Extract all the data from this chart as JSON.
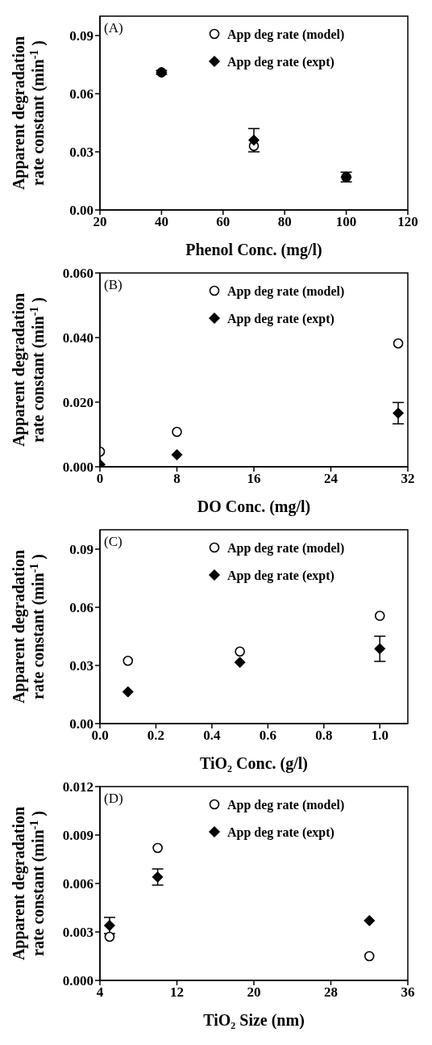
{
  "chart_data": [
    {
      "type": "scatter",
      "annotations": [
        "(A)"
      ],
      "xlabel": "Phenol Conc. (mg/l)",
      "ylabel": "Apparent degradation\nrate constant (min$^{-1}$)",
      "x": [
        40,
        70,
        100
      ],
      "xlim": [
        20,
        120
      ],
      "xticks": [
        20,
        40,
        60,
        80,
        100,
        120
      ],
      "ylim": [
        0,
        0.1
      ],
      "yticks": [
        {
          "value": 0,
          "label": "0.00"
        },
        {
          "value": 0.03,
          "label": "0.03"
        },
        {
          "value": 0.06,
          "label": "0.06"
        },
        {
          "value": 0.09,
          "label": "0.09"
        }
      ],
      "legend": "top right",
      "series": [
        {
          "name": "App deg rate (model)",
          "color": "#000000",
          "marker": "circle",
          "values": [
            0.071,
            0.033,
            0.017
          ]
        },
        {
          "name": "App deg rate (expt)",
          "color": "#000000",
          "marker": "diamond",
          "values": [
            0.071,
            0.036,
            0.017
          ],
          "errors": [
            0.001,
            0.006,
            0.0025
          ]
        }
      ]
    },
    {
      "type": "scatter",
      "annotations": [
        "(B)"
      ],
      "xlabel": "DO Conc. (mg/l)",
      "ylabel": "Apparent degradation\nrate constant (min$^{-1}$)",
      "x": [
        0,
        8,
        31
      ],
      "xlim": [
        0,
        32
      ],
      "xticks": [
        0,
        8,
        16,
        24,
        32
      ],
      "ylim": [
        0,
        0.06
      ],
      "yticks": [
        {
          "value": 0,
          "label": "0.000"
        },
        {
          "value": 0.02,
          "label": "0.020"
        },
        {
          "value": 0.04,
          "label": "0.040"
        },
        {
          "value": 0.06,
          "label": "0.060"
        }
      ],
      "legend": "top right",
      "series": [
        {
          "name": "App deg rate (model)",
          "color": "#000000",
          "marker": "circle",
          "values": [
            0.0047,
            0.0108,
            0.0382
          ]
        },
        {
          "name": "App deg rate (expt)",
          "color": "#000000",
          "marker": "diamond",
          "values": [
            0.0007,
            0.0037,
            0.0166
          ],
          "errors": [
            null,
            null,
            0.0033
          ]
        }
      ]
    },
    {
      "type": "scatter",
      "annotations": [
        "(C)"
      ],
      "xlabel": "TiO₂ Conc. (g/l)",
      "ylabel": "Apparent degradation\nrate constant (min$^{-1}$)",
      "x": [
        0.1,
        0.5,
        1.0
      ],
      "xlim": [
        0,
        1.1
      ],
      "xticks": [
        {
          "value": 0,
          "label": "0.0"
        },
        0.2,
        0.4,
        0.6,
        0.8,
        {
          "value": 1,
          "label": "1.0"
        }
      ],
      "ylim": [
        0,
        0.1
      ],
      "yticks": [
        {
          "value": 0,
          "label": "0.00"
        },
        {
          "value": 0.03,
          "label": "0.03"
        },
        {
          "value": 0.06,
          "label": "0.06"
        },
        {
          "value": 0.09,
          "label": "0.09"
        }
      ],
      "legend": "top right",
      "series": [
        {
          "name": "App deg rate (model)",
          "color": "#000000",
          "marker": "circle",
          "values": [
            0.0324,
            0.0372,
            0.0556
          ]
        },
        {
          "name": "App deg rate (expt)",
          "color": "#000000",
          "marker": "diamond",
          "values": [
            0.0164,
            0.0316,
            0.0386
          ],
          "errors": [
            null,
            null,
            0.0065
          ]
        }
      ]
    },
    {
      "type": "scatter",
      "annotations": [
        "(D)"
      ],
      "xlabel": "TiO₂ Size (nm)",
      "ylabel": "Apparent degradation\nrate constant (min$^{-1}$)",
      "x": [
        5,
        10,
        32
      ],
      "xlim": [
        4,
        36
      ],
      "xticks": [
        4,
        12,
        20,
        28,
        36
      ],
      "ylim": [
        0,
        0.012
      ],
      "yticks": [
        {
          "value": 0,
          "label": "0.000"
        },
        {
          "value": 0.003,
          "label": "0.003"
        },
        {
          "value": 0.006,
          "label": "0.006"
        },
        {
          "value": 0.009,
          "label": "0.009"
        },
        {
          "value": 0.012,
          "label": "0.012"
        }
      ],
      "legend": "top right",
      "series": [
        {
          "name": "App deg rate (model)",
          "color": "#000000",
          "marker": "circle",
          "values": [
            0.0027,
            0.0082,
            0.0015
          ]
        },
        {
          "name": "App deg rate (expt)",
          "color": "#000000",
          "marker": "diamond",
          "values": [
            0.0034,
            0.0064,
            0.0037
          ],
          "errors": [
            0.0005,
            0.0005,
            null
          ]
        }
      ]
    }
  ]
}
